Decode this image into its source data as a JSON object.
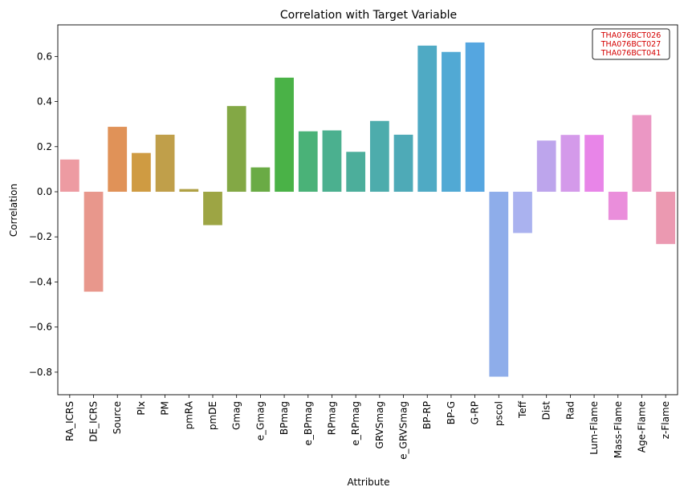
{
  "chart_data": {
    "type": "bar",
    "title": "Correlation with Target Variable",
    "xlabel": "Attribute",
    "ylabel": "Correlation",
    "ylim": [
      -0.9,
      0.74
    ],
    "yticks": [
      -0.8,
      -0.6,
      -0.4,
      -0.2,
      0.0,
      0.2,
      0.4,
      0.6
    ],
    "grid": false,
    "categories": [
      "RA_ICRS",
      "DE_ICRS",
      "Source",
      "Plx",
      "PM",
      "pmRA",
      "pmDE",
      "Gmag",
      "e_Gmag",
      "BPmag",
      "e_BPmag",
      "RPmag",
      "e_RPmag",
      "GRVSmag",
      "e_GRVSmag",
      "BP-RP",
      "BP-G",
      "G-RP",
      "pscol",
      "Teff",
      "Dist",
      "Rad",
      "Lum-Flame",
      "Mass-Flame",
      "Age-Flame",
      "z-Flame"
    ],
    "values": [
      0.143,
      -0.443,
      0.288,
      0.172,
      0.253,
      0.012,
      -0.148,
      0.38,
      0.108,
      0.506,
      0.268,
      0.272,
      0.177,
      0.314,
      0.253,
      0.648,
      0.62,
      0.662,
      -0.82,
      -0.183,
      0.227,
      0.252,
      0.252,
      -0.125,
      0.34,
      -0.232
    ],
    "colors": [
      "#ed9ba2",
      "#e8978c",
      "#e09258",
      "#cf9b42",
      "#c09f4a",
      "#b0a145",
      "#9da544",
      "#83a845",
      "#6aab45",
      "#4ab247",
      "#4ab278",
      "#4bb08f",
      "#4cae9b",
      "#4dacac",
      "#4eaab7",
      "#4faac4",
      "#51a9d4",
      "#55a6e0",
      "#8eadea",
      "#aab2ef",
      "#bda5ec",
      "#d49aea",
      "#e885e8",
      "#ea8edb",
      "#eb97c4",
      "#eb99b1"
    ],
    "annotation": [
      "THA076BCT026",
      "THA076BCT027",
      "THA076BCT041"
    ]
  }
}
